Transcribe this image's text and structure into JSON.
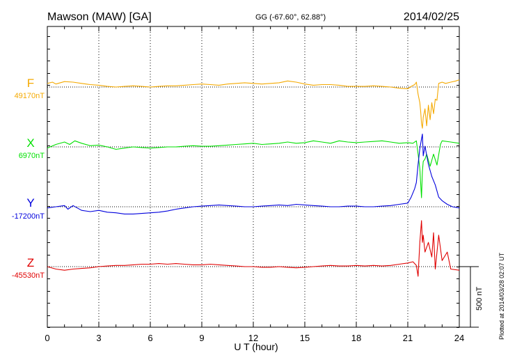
{
  "header": {
    "station": "Mawson (MAW)  [GA]",
    "coords": "GG (-67.60°,  62.88°)",
    "date": "2014/02/25"
  },
  "footer": {
    "plotted_at": "Plotted at 2014/03/28 02:07 UT"
  },
  "colors": {
    "F": "#f4a900",
    "X": "#00e000",
    "Y": "#0000dd",
    "Z": "#e00000"
  },
  "chart_data": {
    "type": "line",
    "title": "Mawson (MAW)  [GA]",
    "xlabel": "U T (hour)",
    "xlim": [
      0,
      24
    ],
    "xticks": [
      0,
      3,
      6,
      9,
      12,
      15,
      18,
      21,
      24
    ],
    "scale_label": "500 nT",
    "scale_nT": 500,
    "series": [
      {
        "name": "F",
        "baseline_label": "49170nT",
        "t": [
          0,
          0.3,
          0.5,
          1,
          1.5,
          2,
          2.5,
          3,
          3.5,
          4,
          4.5,
          5,
          5.5,
          6,
          6.5,
          7,
          7.5,
          8,
          8.5,
          9,
          9.5,
          10,
          10.5,
          11,
          11.5,
          12,
          12.5,
          13,
          13.5,
          14,
          14.5,
          15,
          15.5,
          16,
          16.5,
          17,
          17.5,
          18,
          18.5,
          19,
          19.5,
          20,
          20.5,
          21,
          21.2,
          21.4,
          21.5,
          21.6,
          21.7,
          21.75,
          21.8,
          21.85,
          21.9,
          22,
          22.1,
          22.2,
          22.3,
          22.4,
          22.5,
          22.6,
          22.7,
          22.8,
          23,
          23.2,
          23.5,
          23.8,
          24
        ],
        "v": [
          30,
          40,
          25,
          45,
          40,
          30,
          20,
          15,
          5,
          0,
          5,
          10,
          5,
          0,
          5,
          10,
          10,
          15,
          20,
          25,
          20,
          15,
          25,
          30,
          35,
          30,
          25,
          30,
          35,
          50,
          40,
          25,
          15,
          20,
          20,
          15,
          5,
          5,
          5,
          10,
          5,
          0,
          -10,
          -15,
          5,
          20,
          40,
          -60,
          -130,
          -200,
          -300,
          -340,
          -250,
          -180,
          -320,
          -150,
          -270,
          -130,
          -220,
          -100,
          -110,
          30,
          40,
          30,
          40,
          50,
          60
        ]
      },
      {
        "name": "X",
        "baseline_label": "6970nT",
        "t": [
          0,
          0.5,
          1,
          1.3,
          1.6,
          2,
          2.5,
          3,
          3.5,
          4,
          4.5,
          5,
          5.5,
          6,
          6.5,
          7,
          7.5,
          8,
          8.5,
          9,
          9.5,
          10,
          10.5,
          11,
          11.5,
          12,
          12.5,
          13,
          13.5,
          14,
          14.5,
          15,
          15.5,
          16,
          16.5,
          17,
          17.5,
          18,
          18.5,
          19,
          19.5,
          20,
          20.5,
          21,
          21.3,
          21.5,
          21.6,
          21.7,
          21.75,
          21.8,
          21.85,
          21.9,
          22,
          22.1,
          22.3,
          22.5,
          22.7,
          22.9,
          23,
          23.5,
          24
        ],
        "v": [
          -10,
          20,
          40,
          20,
          50,
          30,
          10,
          15,
          0,
          -20,
          -10,
          0,
          -5,
          -10,
          -5,
          0,
          0,
          5,
          10,
          5,
          5,
          10,
          15,
          20,
          25,
          30,
          20,
          25,
          30,
          40,
          30,
          35,
          50,
          40,
          30,
          50,
          40,
          35,
          40,
          45,
          50,
          40,
          30,
          35,
          30,
          50,
          -60,
          -180,
          -300,
          -420,
          -200,
          -120,
          -100,
          -60,
          -160,
          -60,
          -150,
          20,
          50,
          40,
          30
        ]
      },
      {
        "name": "Y",
        "baseline_label": "-17200nT",
        "t": [
          0,
          0.5,
          1,
          1.2,
          1.5,
          2,
          2.5,
          3,
          3.5,
          4,
          4.5,
          5,
          5.5,
          6,
          6.5,
          7,
          7.5,
          8,
          8.5,
          9,
          9.5,
          10,
          10.5,
          11,
          11.5,
          12,
          12.5,
          13,
          13.5,
          14,
          14.5,
          15,
          15.5,
          16,
          16.5,
          17,
          17.5,
          18,
          18.5,
          19,
          19.5,
          20,
          20.5,
          21,
          21.2,
          21.4,
          21.5,
          21.6,
          21.7,
          21.8,
          21.85,
          21.9,
          22,
          22.2,
          22.4,
          22.6,
          22.8,
          23,
          23.3,
          23.6,
          24
        ],
        "v": [
          -10,
          0,
          10,
          -20,
          10,
          -30,
          -40,
          -30,
          -45,
          -50,
          -60,
          -60,
          -55,
          -50,
          -45,
          -35,
          -20,
          -10,
          0,
          5,
          10,
          15,
          10,
          5,
          0,
          0,
          5,
          10,
          15,
          10,
          20,
          15,
          10,
          5,
          0,
          0,
          5,
          5,
          0,
          0,
          5,
          10,
          20,
          30,
          80,
          150,
          200,
          350,
          480,
          560,
          600,
          420,
          500,
          350,
          250,
          180,
          80,
          50,
          20,
          0,
          -10
        ]
      },
      {
        "name": "Z",
        "baseline_label": "-45530nT",
        "t": [
          0,
          0.5,
          1,
          1.5,
          2,
          2.5,
          3,
          3.5,
          4,
          4.5,
          5,
          5.5,
          6,
          6.5,
          7,
          7.5,
          8,
          8.5,
          9,
          9.5,
          10,
          10.5,
          11,
          11.5,
          12,
          12.5,
          13,
          13.5,
          14,
          14.5,
          15,
          15.5,
          16,
          16.5,
          17,
          17.5,
          18,
          18.5,
          19,
          19.5,
          20,
          20.5,
          21,
          21.3,
          21.5,
          21.6,
          21.7,
          21.8,
          21.85,
          21.9,
          22,
          22.2,
          22.4,
          22.5,
          22.6,
          22.8,
          23,
          23.3,
          23.5,
          24
        ],
        "v": [
          0,
          -20,
          -30,
          -20,
          -15,
          -10,
          0,
          5,
          10,
          10,
          15,
          20,
          20,
          25,
          20,
          25,
          20,
          15,
          15,
          20,
          15,
          10,
          5,
          0,
          0,
          -5,
          -5,
          0,
          -5,
          -10,
          -5,
          0,
          5,
          10,
          5,
          5,
          10,
          5,
          10,
          5,
          10,
          20,
          30,
          40,
          10,
          -80,
          200,
          380,
          200,
          260,
          120,
          200,
          80,
          280,
          -20,
          260,
          50,
          120,
          -20,
          -30
        ]
      }
    ]
  }
}
